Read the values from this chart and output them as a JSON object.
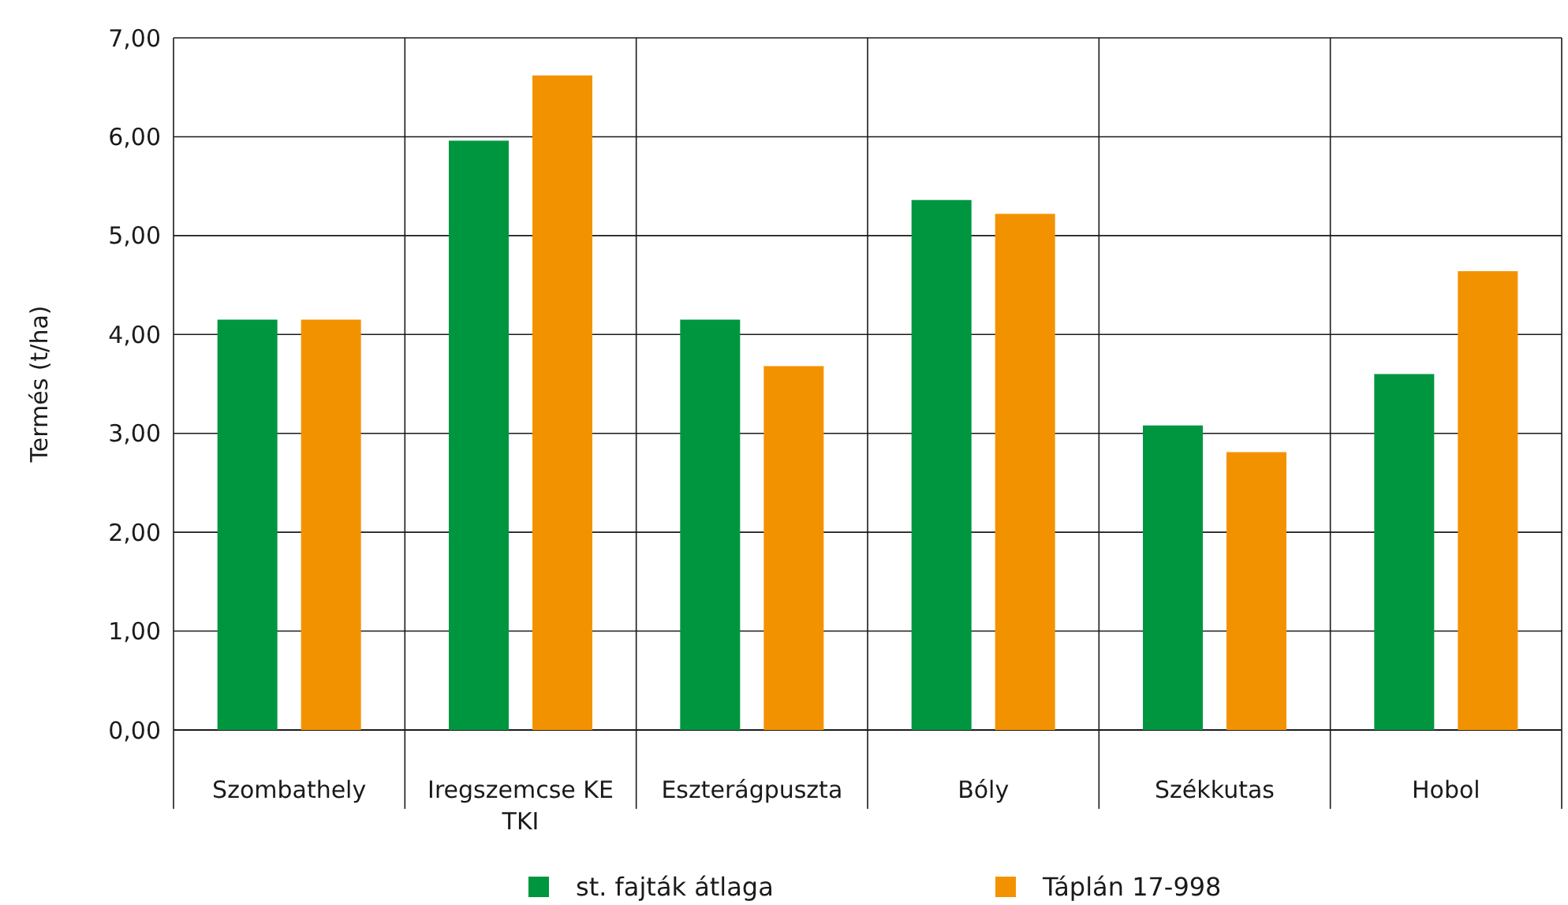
{
  "chart_data": {
    "type": "bar",
    "ylabel": "Termés (t/ha)",
    "categories": [
      "Szombathely",
      "Iregszemcse KE TKI",
      "Eszterágpuszta",
      "Bóly",
      "Székkutas",
      "Hobol"
    ],
    "series": [
      {
        "name": "st. fajták átlaga",
        "color": "#009640",
        "values": [
          4.15,
          5.96,
          4.15,
          5.36,
          3.08,
          3.6
        ]
      },
      {
        "name": "Táplán 17-998",
        "color": "#f39200",
        "values": [
          4.15,
          6.62,
          3.68,
          5.22,
          2.81,
          4.64
        ]
      }
    ],
    "ylim": [
      0,
      7
    ],
    "yticks": [
      {
        "value": 0,
        "label": "0,00"
      },
      {
        "value": 1,
        "label": "1,00"
      },
      {
        "value": 2,
        "label": "2,00"
      },
      {
        "value": 3,
        "label": "3,00"
      },
      {
        "value": 4,
        "label": "4,00"
      },
      {
        "value": 5,
        "label": "5,00"
      },
      {
        "value": 6,
        "label": "6,00"
      },
      {
        "value": 7,
        "label": "7,00"
      }
    ],
    "grid": true,
    "legend": "bottom"
  }
}
